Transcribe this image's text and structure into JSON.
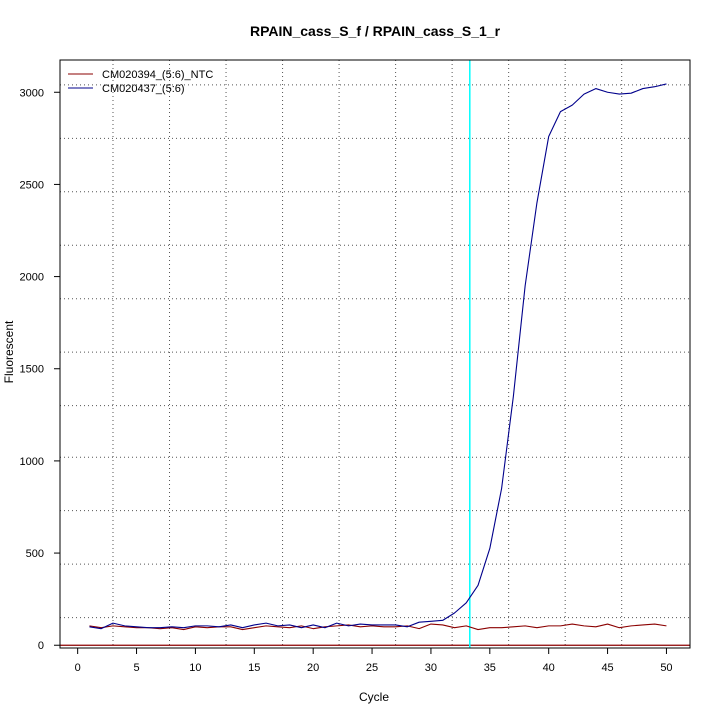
{
  "chart_data": {
    "type": "line",
    "title": "RPAIN_cass_S_f / RPAIN_cass_S_1_r",
    "xlabel": "Cycle",
    "ylabel": "Fluorescent",
    "xlim": [
      -1.5,
      52
    ],
    "ylim": [
      -15,
      3175
    ],
    "x_ticks": [
      0,
      5,
      10,
      15,
      20,
      25,
      30,
      35,
      40,
      45,
      50
    ],
    "y_ticks": [
      0,
      500,
      1000,
      1500,
      2000,
      2500,
      3000
    ],
    "vertical_grid_x": [
      3,
      7.8,
      12.6,
      17.4,
      22.2,
      27,
      31.8,
      36.6,
      41.4,
      46.2
    ],
    "horizontal_grid_y": [
      150,
      440,
      730,
      1020,
      1300,
      1590,
      1880,
      2170,
      2460,
      2750,
      3040
    ],
    "grid": true,
    "threshold_cycle": 33.3,
    "threshold_color": "#00ffff",
    "baseline_value": 0,
    "baseline_color": "#8b0000",
    "legend_position": "top-left",
    "x": [
      1,
      2,
      3,
      4,
      5,
      6,
      7,
      8,
      9,
      10,
      11,
      12,
      13,
      14,
      15,
      16,
      17,
      18,
      19,
      20,
      21,
      22,
      23,
      24,
      25,
      26,
      27,
      28,
      29,
      30,
      31,
      32,
      33,
      34,
      35,
      36,
      37,
      38,
      39,
      40,
      41,
      42,
      43,
      44,
      45,
      46,
      47,
      48,
      49,
      50
    ],
    "series": [
      {
        "name": "CM020394_(5:6)_NTC",
        "color": "#8b0000",
        "values": [
          105,
          95,
          105,
          100,
          95,
          95,
          90,
          95,
          85,
          100,
          95,
          100,
          100,
          85,
          95,
          105,
          100,
          95,
          105,
          90,
          100,
          105,
          110,
          100,
          105,
          100,
          100,
          105,
          90,
          115,
          110,
          95,
          105,
          85,
          95,
          95,
          100,
          105,
          95,
          105,
          105,
          115,
          105,
          100,
          115,
          95,
          105,
          110,
          115,
          105
        ]
      },
      {
        "name": "CM020437_(5:6)",
        "color": "#00008b",
        "values": [
          100,
          90,
          120,
          105,
          100,
          95,
          95,
          100,
          95,
          105,
          105,
          100,
          110,
          95,
          110,
          120,
          105,
          110,
          95,
          110,
          95,
          120,
          105,
          115,
          110,
          110,
          110,
          100,
          125,
          130,
          135,
          175,
          230,
          325,
          525,
          850,
          1350,
          1950,
          2400,
          2760,
          2895,
          2930,
          2990,
          3020,
          3000,
          2990,
          2995,
          3020,
          3030,
          3045
        ]
      }
    ]
  }
}
